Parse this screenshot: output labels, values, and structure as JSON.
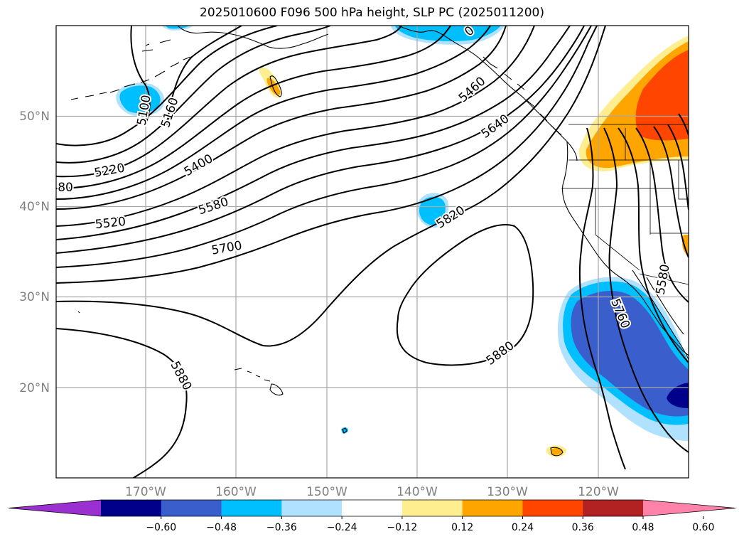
{
  "title": "2025010600 F096 500 hPa height, SLP PC (2025011200)",
  "lat_labels": [
    "50°N",
    "40°N",
    "30°N",
    "20°N"
  ],
  "lon_labels": [
    "170°W",
    "160°W",
    "150°W",
    "140°W",
    "130°W",
    "120°W"
  ],
  "contour_labels": [
    "5100",
    "5160",
    "5220",
    "5400",
    "5460",
    "5520",
    "5580",
    "5640",
    "5700",
    "5820",
    "5880",
    "5880",
    "5760",
    "5580",
    "80",
    "0"
  ],
  "colorbar": {
    "ticks": [
      "−0.60",
      "−0.48",
      "−0.36",
      "−0.24",
      "−0.12",
      "0.12",
      "0.24",
      "0.36",
      "0.48",
      "0.60"
    ],
    "colors": [
      "#9b30d0",
      "#00008b",
      "#3a5fcd",
      "#00bfff",
      "#b0e2ff",
      "#ffffff",
      "#ffee90",
      "#ffa500",
      "#ff4500",
      "#b22222",
      "#ff82ab"
    ]
  }
}
